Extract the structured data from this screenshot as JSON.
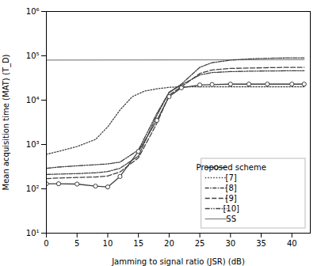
{
  "chart_data": {
    "type": "line",
    "xlabel": "Jamming to signal ratio (JSR) (dB)",
    "ylabel": "Mean acquisition time (MAT) (T_D)",
    "log": "y",
    "grid": false,
    "legend": "lower right",
    "xlim": [
      0,
      43
    ],
    "xticks": [
      0,
      5,
      10,
      15,
      20,
      25,
      30,
      35,
      40
    ],
    "ylim": [
      10,
      1000000
    ],
    "yticks": [
      {
        "value": 10,
        "label": "10¹"
      },
      {
        "value": 100,
        "label": "10²"
      },
      {
        "value": 1000,
        "label": "10³"
      },
      {
        "value": 10000,
        "label": "10⁴"
      },
      {
        "value": 100000,
        "label": "10⁵"
      },
      {
        "value": 1000000,
        "label": "10⁶"
      }
    ],
    "series": [
      {
        "name": "Proposed scheme",
        "color": "#404040",
        "line_style": "solid",
        "marker": "circle",
        "x": [
          0,
          2,
          5,
          8,
          10,
          12,
          15,
          18,
          20,
          22,
          25,
          27,
          30,
          33,
          36,
          40,
          42
        ],
        "values": [
          130,
          130,
          128,
          115,
          110,
          190,
          700,
          3500,
          12000,
          19000,
          22000,
          22500,
          23000,
          23000,
          23000,
          23000,
          23000
        ]
      },
      {
        "name": "[7]",
        "color": "#404040",
        "line_style": "dotted",
        "x": [
          0,
          2,
          5,
          8,
          10,
          12,
          14,
          16,
          18,
          20,
          22,
          25,
          27,
          30,
          35,
          40,
          42
        ],
        "values": [
          600,
          700,
          900,
          1300,
          2500,
          6000,
          12000,
          16000,
          18000,
          19500,
          20000,
          20000,
          20000,
          20000,
          20000,
          20000,
          20000
        ]
      },
      {
        "name": "[8]",
        "color": "#404040",
        "line_style": "dashdot",
        "x": [
          0,
          2,
          5,
          8,
          10,
          12,
          15,
          18,
          20,
          22,
          25,
          27,
          30,
          33,
          36,
          40,
          42
        ],
        "values": [
          210,
          215,
          220,
          230,
          245,
          290,
          550,
          4500,
          15000,
          23000,
          55000,
          70000,
          80000,
          85000,
          88000,
          90000,
          90000
        ]
      },
      {
        "name": "[9]",
        "color": "#404040",
        "line_style": "dashed",
        "x": [
          0,
          2,
          5,
          8,
          10,
          12,
          15,
          18,
          20,
          22,
          25,
          27,
          30,
          33,
          36,
          40,
          42
        ],
        "values": [
          170,
          175,
          180,
          185,
          195,
          240,
          500,
          3000,
          13000,
          20000,
          40000,
          48000,
          52000,
          53000,
          54000,
          55000,
          55000
        ]
      },
      {
        "name": "[10]",
        "color": "#404040",
        "line_style": "dashdotdot",
        "x": [
          0,
          2,
          5,
          8,
          10,
          12,
          15,
          18,
          20,
          22,
          25,
          27,
          30,
          33,
          36,
          40,
          42
        ],
        "values": [
          290,
          310,
          330,
          350,
          365,
          400,
          750,
          5000,
          15000,
          22000,
          37000,
          42000,
          44000,
          45000,
          45500,
          46000,
          46000
        ]
      },
      {
        "name": "SS",
        "color": "#888888",
        "line_style": "solid",
        "x": [
          0,
          42
        ],
        "values": [
          80000,
          82000
        ]
      }
    ]
  }
}
